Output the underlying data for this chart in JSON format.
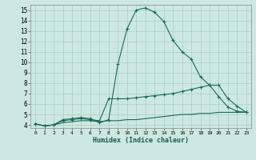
{
  "xlabel": "Humidex (Indice chaleur)",
  "xlim": [
    -0.5,
    23.5
  ],
  "ylim": [
    3.7,
    15.5
  ],
  "xticks": [
    0,
    1,
    2,
    3,
    4,
    5,
    6,
    7,
    8,
    9,
    10,
    11,
    12,
    13,
    14,
    15,
    16,
    17,
    18,
    19,
    20,
    21,
    22,
    23
  ],
  "yticks": [
    4,
    5,
    6,
    7,
    8,
    9,
    10,
    11,
    12,
    13,
    14,
    15
  ],
  "bg_color": "#cce8e0",
  "grid_color": "#aacfc8",
  "line_color": "#1a6b5a",
  "line1_x": [
    0,
    1,
    2,
    3,
    4,
    5,
    6,
    7,
    8,
    9,
    10,
    11,
    12,
    13,
    14,
    15,
    16,
    17,
    18,
    19,
    20,
    21,
    22,
    23
  ],
  "line1_y": [
    4.1,
    3.9,
    4.0,
    4.5,
    4.6,
    4.7,
    4.6,
    4.2,
    4.5,
    9.8,
    13.2,
    15.0,
    15.2,
    14.8,
    13.9,
    12.1,
    11.0,
    10.3,
    8.6,
    7.8,
    6.7,
    5.7,
    5.3,
    5.2
  ],
  "line2_x": [
    0,
    1,
    2,
    3,
    4,
    5,
    6,
    7,
    8,
    9,
    10,
    11,
    12,
    13,
    14,
    15,
    16,
    17,
    18,
    19,
    20,
    21,
    22,
    23
  ],
  "line2_y": [
    4.1,
    3.9,
    4.0,
    4.4,
    4.5,
    4.6,
    4.5,
    4.4,
    6.5,
    6.5,
    6.5,
    6.6,
    6.7,
    6.8,
    6.9,
    7.0,
    7.2,
    7.4,
    7.6,
    7.8,
    7.8,
    6.5,
    5.8,
    5.2
  ],
  "line3_x": [
    0,
    1,
    2,
    3,
    4,
    5,
    6,
    7,
    8,
    9,
    10,
    11,
    12,
    13,
    14,
    15,
    16,
    17,
    18,
    19,
    20,
    21,
    22,
    23
  ],
  "line3_y": [
    4.1,
    3.9,
    4.0,
    4.2,
    4.3,
    4.4,
    4.4,
    4.3,
    4.4,
    4.4,
    4.5,
    4.5,
    4.6,
    4.7,
    4.8,
    4.9,
    5.0,
    5.0,
    5.1,
    5.1,
    5.2,
    5.2,
    5.2,
    5.2
  ]
}
